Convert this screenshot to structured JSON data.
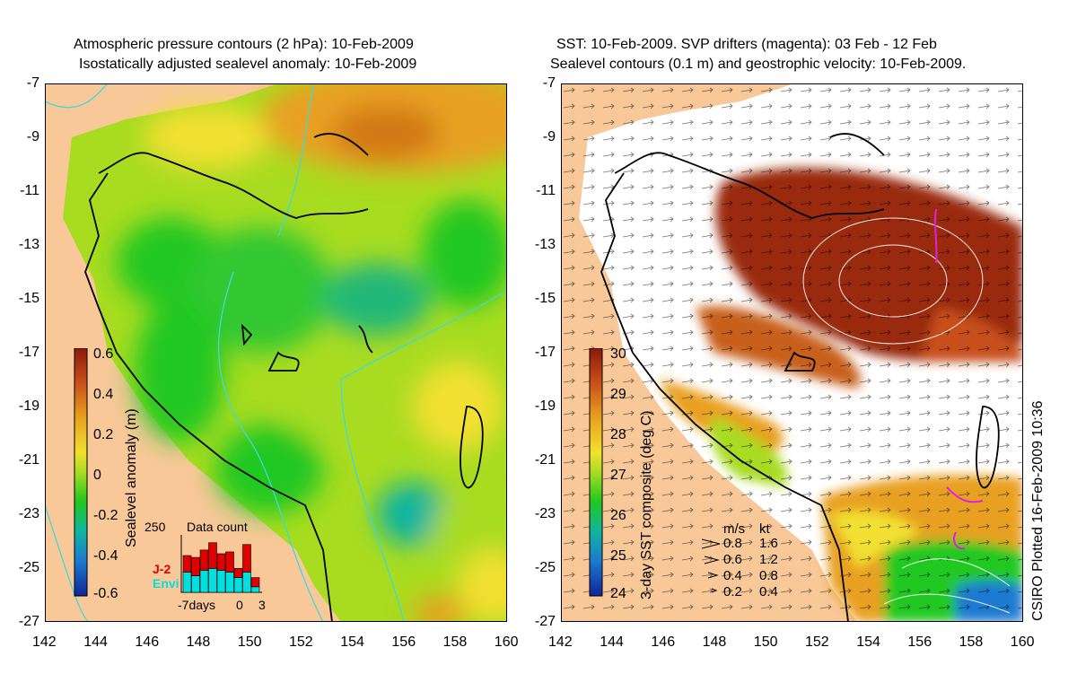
{
  "left_panel": {
    "title_line1": "Atmospheric pressure contours (2 hPa): 10-Feb-2009",
    "title_line2": "Isostatically adjusted sealevel anomaly: 10-Feb-2009",
    "colorbar": {
      "label": "Sealevel anomaly (m)",
      "ticks": [
        "0.6",
        "0.4",
        "0.2",
        "0",
        "-0.2",
        "-0.4",
        "-0.6"
      ],
      "colors": [
        "#8b1a0a",
        "#c8501a",
        "#e8a020",
        "#f2e030",
        "#a8dc20",
        "#20c820",
        "#10b4a0",
        "#1a7ad0",
        "#10249a"
      ]
    },
    "inset": {
      "title": "Data count",
      "ymax_label": "250",
      "x_labels": [
        "-7days",
        "0",
        "3"
      ],
      "legend": [
        {
          "name": "J-2",
          "color": "#e00000"
        },
        {
          "name": "Envi",
          "color": "#00e0e0"
        }
      ],
      "bars": [
        {
          "j2": 0.18,
          "envi": 0.22
        },
        {
          "j2": 0.2,
          "envi": 0.18
        },
        {
          "j2": 0.22,
          "envi": 0.24
        },
        {
          "j2": 0.28,
          "envi": 0.26
        },
        {
          "j2": 0.18,
          "envi": 0.24
        },
        {
          "j2": 0.22,
          "envi": 0.22
        },
        {
          "j2": 0.1,
          "envi": 0.16
        },
        {
          "j2": 0.3,
          "envi": 0.22
        },
        {
          "j2": 0.1,
          "envi": 0.06
        }
      ]
    }
  },
  "right_panel": {
    "title_line1": "SST: 10-Feb-2009. SVP drifters (magenta): 03 Feb - 12 Feb",
    "title_line2": "Sealevel contours (0.1 m) and geostrophic velocity: 10-Feb-2009.",
    "colorbar": {
      "label": "3-day SST composite (deg C)",
      "ticks": [
        "30",
        "29",
        "28",
        "27",
        "26",
        "25",
        "24"
      ],
      "colors": [
        "#8b1a0a",
        "#c8501a",
        "#e8a020",
        "#f2e030",
        "#a8dc20",
        "#20c820",
        "#10b4a0",
        "#1a7ad0",
        "#10249a"
      ]
    },
    "velocity_key": {
      "header_ms": "m/s",
      "header_kt": "kt",
      "rows": [
        {
          "ms": "0.8",
          "kt": "1.6"
        },
        {
          "ms": "0.6",
          "kt": "1.2"
        },
        {
          "ms": "0.4",
          "kt": "0.8"
        },
        {
          "ms": "0.2",
          "kt": "0.4"
        }
      ]
    }
  },
  "axes": {
    "y_ticks": [
      "-7",
      "-9",
      "-11",
      "-13",
      "-15",
      "-17",
      "-19",
      "-21",
      "-23",
      "-25",
      "-27"
    ],
    "x_ticks": [
      "142",
      "144",
      "146",
      "148",
      "150",
      "152",
      "154",
      "156",
      "158",
      "160"
    ]
  },
  "credit": "CSIRO Plotted 16-Feb-2009 10:36",
  "colors": {
    "land": "#f8c898",
    "coast": "#000000",
    "pressure_contour": "#40d8e0",
    "no_data": "#ffffff"
  }
}
